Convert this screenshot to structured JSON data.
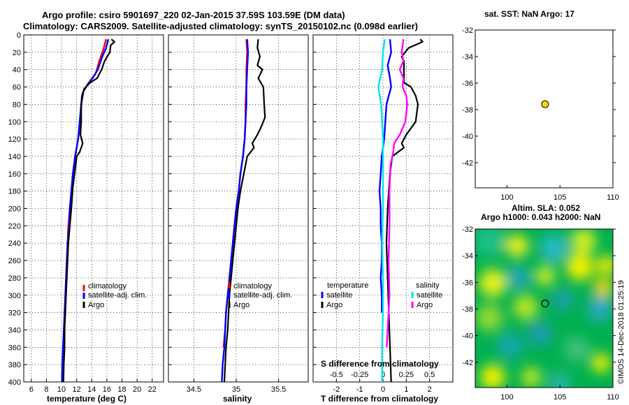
{
  "title_line1": "Argo profile: csiro 5901697_220 02-Jan-2015 37.59S 103.59E (DM data)",
  "title_line2": "Climatology: CARS2009. Satellite-adjusted climatology: synTS_20150102.nc (0.098d earlier)",
  "map1_title": "sat. SST: NaN Argo: 17",
  "map2_title1": "Altim. SLA: 0.052",
  "map2_title2": "Argo h1000: 0.043 h2000: NaN",
  "watermark": "©IMOS 14-Dec-2018 01:25:19",
  "colors": {
    "climatology": "#ff0000",
    "satellite": "#0000ff",
    "argo": "#000000",
    "sal_sat": "#00e5ee",
    "sal_argo": "#ff00ff"
  },
  "chart_data": [
    {
      "type": "line",
      "title": "",
      "xlabel": "temperature (deg C)",
      "ylabel": "",
      "xlim": [
        5,
        23.5
      ],
      "ylim": [
        400,
        0
      ],
      "xticks": [
        6,
        8,
        10,
        12,
        14,
        16,
        18,
        20,
        22
      ],
      "yticks": [
        0,
        20,
        40,
        60,
        80,
        100,
        120,
        140,
        160,
        180,
        200,
        220,
        240,
        260,
        280,
        300,
        320,
        340,
        360,
        380,
        400
      ],
      "grid": true,
      "legend_position": "bottom-right",
      "legend": [
        "climatology",
        "satellite-adj. clim.",
        "Argo"
      ],
      "series": [
        {
          "name": "climatology",
          "color": "red",
          "points": [
            [
              15.9,
              5
            ],
            [
              15.6,
              15
            ],
            [
              15.0,
              30
            ],
            [
              14.5,
              45
            ],
            [
              13.6,
              55
            ],
            [
              12.9,
              65
            ],
            [
              12.6,
              80
            ],
            [
              12.5,
              100
            ],
            [
              12.2,
              120
            ],
            [
              11.8,
              140
            ],
            [
              11.5,
              160
            ],
            [
              11.3,
              180
            ],
            [
              11.1,
              200
            ],
            [
              10.9,
              220
            ],
            [
              10.8,
              240
            ],
            [
              10.7,
              260
            ],
            [
              10.6,
              280
            ],
            [
              10.5,
              300
            ],
            [
              10.4,
              320
            ]
          ]
        },
        {
          "name": "satellite-adj. clim.",
          "color": "blue",
          "points": [
            [
              16.2,
              5
            ],
            [
              15.9,
              15
            ],
            [
              15.4,
              25
            ],
            [
              14.8,
              40
            ],
            [
              14.1,
              50
            ],
            [
              13.4,
              58
            ],
            [
              12.9,
              65
            ],
            [
              12.6,
              80
            ],
            [
              12.4,
              100
            ],
            [
              12.2,
              120
            ],
            [
              11.8,
              140
            ],
            [
              11.5,
              160
            ],
            [
              11.3,
              180
            ],
            [
              11.1,
              200
            ],
            [
              11.0,
              220
            ],
            [
              10.8,
              240
            ],
            [
              10.7,
              260
            ],
            [
              10.6,
              280
            ],
            [
              10.5,
              300
            ],
            [
              10.4,
              320
            ],
            [
              10.3,
              340
            ],
            [
              10.2,
              360
            ],
            [
              10.1,
              380
            ],
            [
              10.05,
              400
            ]
          ]
        },
        {
          "name": "Argo",
          "color": "black",
          "points": [
            [
              16.6,
              5
            ],
            [
              17.0,
              8
            ],
            [
              16.5,
              12
            ],
            [
              16.4,
              20
            ],
            [
              15.7,
              30
            ],
            [
              15.3,
              40
            ],
            [
              14.7,
              50
            ],
            [
              13.8,
              55
            ],
            [
              13.0,
              62
            ],
            [
              12.7,
              70
            ],
            [
              12.6,
              80
            ],
            [
              12.6,
              100
            ],
            [
              12.5,
              115
            ],
            [
              12.8,
              125
            ],
            [
              12.4,
              135
            ],
            [
              12.0,
              140
            ],
            [
              11.8,
              155
            ],
            [
              11.5,
              175
            ],
            [
              11.3,
              200
            ],
            [
              11.1,
              220
            ],
            [
              10.9,
              240
            ],
            [
              10.8,
              260
            ],
            [
              10.7,
              280
            ],
            [
              10.6,
              300
            ],
            [
              10.5,
              320
            ],
            [
              10.4,
              340
            ],
            [
              10.4,
              360
            ],
            [
              10.3,
              380
            ],
            [
              10.25,
              400
            ]
          ]
        }
      ]
    },
    {
      "type": "line",
      "title": "",
      "xlabel": "salinity",
      "ylabel": "",
      "xlim": [
        34.2,
        35.85
      ],
      "ylim": [
        400,
        0
      ],
      "xticks": [
        34.5,
        35,
        35.5
      ],
      "xticklabels": [
        "34.5",
        "35",
        "35.5"
      ],
      "grid": true,
      "legend_position": "bottom-right",
      "legend": [
        "climatology",
        "satellite-adj. clim.",
        "Argo"
      ],
      "series": [
        {
          "name": "climatology",
          "color": "red",
          "points": [
            [
              35.12,
              5
            ],
            [
              35.13,
              20
            ],
            [
              35.12,
              40
            ],
            [
              35.12,
              60
            ],
            [
              35.11,
              80
            ],
            [
              35.11,
              100
            ],
            [
              35.1,
              120
            ],
            [
              35.08,
              140
            ],
            [
              35.05,
              160
            ],
            [
              35.03,
              180
            ],
            [
              35.0,
              200
            ],
            [
              34.98,
              220
            ],
            [
              34.96,
              240
            ],
            [
              34.94,
              260
            ],
            [
              34.92,
              280
            ],
            [
              34.9,
              300
            ],
            [
              34.88,
              320
            ],
            [
              34.87,
              340
            ],
            [
              34.85,
              360
            ]
          ]
        },
        {
          "name": "satellite-adj. clim.",
          "color": "blue",
          "points": [
            [
              35.13,
              5
            ],
            [
              35.14,
              20
            ],
            [
              35.13,
              40
            ],
            [
              35.12,
              60
            ],
            [
              35.12,
              80
            ],
            [
              35.11,
              100
            ],
            [
              35.1,
              120
            ],
            [
              35.08,
              140
            ],
            [
              35.05,
              160
            ],
            [
              35.03,
              180
            ],
            [
              35.0,
              200
            ],
            [
              34.98,
              220
            ],
            [
              34.96,
              240
            ],
            [
              34.94,
              260
            ],
            [
              34.92,
              280
            ],
            [
              34.9,
              300
            ],
            [
              34.88,
              320
            ],
            [
              34.87,
              340
            ],
            [
              34.86,
              360
            ],
            [
              34.84,
              380
            ],
            [
              34.83,
              400
            ]
          ]
        },
        {
          "name": "Argo",
          "color": "black",
          "points": [
            [
              35.26,
              5
            ],
            [
              35.25,
              15
            ],
            [
              35.28,
              25
            ],
            [
              35.25,
              35
            ],
            [
              35.31,
              40
            ],
            [
              35.26,
              50
            ],
            [
              35.32,
              60
            ],
            [
              35.33,
              80
            ],
            [
              35.34,
              95
            ],
            [
              35.3,
              105
            ],
            [
              35.25,
              115
            ],
            [
              35.19,
              125
            ],
            [
              35.21,
              130
            ],
            [
              35.13,
              140
            ],
            [
              35.09,
              160
            ],
            [
              35.05,
              180
            ],
            [
              35.02,
              200
            ],
            [
              35.0,
              220
            ],
            [
              34.98,
              240
            ],
            [
              34.96,
              260
            ],
            [
              34.94,
              280
            ],
            [
              34.92,
              300
            ],
            [
              34.91,
              320
            ],
            [
              34.9,
              340
            ],
            [
              34.88,
              360
            ],
            [
              34.87,
              380
            ],
            [
              34.86,
              400
            ]
          ]
        }
      ]
    },
    {
      "type": "line",
      "title": "",
      "xlabel": "T difference from climatology",
      "x2label": "S difference from climatology",
      "ylabel": "",
      "xlim": [
        -3,
        3
      ],
      "ylim": [
        400,
        0
      ],
      "xticks": [
        -2,
        -1,
        0,
        1,
        2
      ],
      "xticklabels": [
        "-2",
        "-1",
        "0",
        "1",
        "2"
      ],
      "x2ticks": [
        -0.5,
        -0.25,
        0,
        0.25,
        0.5
      ],
      "x2ticklabels": [
        "-0.5",
        "-0.25",
        "0",
        "0.25",
        "0.5"
      ],
      "grid": true,
      "legend_position": "bottom",
      "legend_temperature_title": "temperature",
      "legend_salinity_title": "salinity",
      "legend": [
        "satellite",
        "Argo",
        "satellite",
        "Argo"
      ],
      "series": [
        {
          "name": "temperature satellite",
          "color": "blue",
          "points": [
            [
              0.3,
              5
            ],
            [
              0.35,
              20
            ],
            [
              0.2,
              35
            ],
            [
              0.3,
              50
            ],
            [
              0.35,
              60
            ],
            [
              0.15,
              80
            ],
            [
              0.1,
              100
            ],
            [
              0.05,
              120
            ],
            [
              -0.05,
              140
            ],
            [
              -0.1,
              160
            ],
            [
              -0.15,
              180
            ],
            [
              -0.1,
              200
            ],
            [
              -0.1,
              220
            ],
            [
              -0.05,
              240
            ],
            [
              -0.05,
              260
            ],
            [
              -0.1,
              280
            ],
            [
              -0.05,
              300
            ],
            [
              -0.05,
              320
            ]
          ]
        },
        {
          "name": "temperature Argo",
          "color": "black",
          "points": [
            [
              1.6,
              5
            ],
            [
              1.7,
              8
            ],
            [
              1.1,
              15
            ],
            [
              0.8,
              25
            ],
            [
              0.9,
              30
            ],
            [
              0.9,
              40
            ],
            [
              0.9,
              55
            ],
            [
              1.2,
              60
            ],
            [
              1.4,
              70
            ],
            [
              1.5,
              80
            ],
            [
              1.4,
              100
            ],
            [
              1.0,
              115
            ],
            [
              0.8,
              125
            ],
            [
              0.9,
              130
            ],
            [
              0.4,
              140
            ],
            [
              0.3,
              160
            ],
            [
              0.25,
              180
            ],
            [
              0.2,
              200
            ],
            [
              0.15,
              240
            ],
            [
              0.2,
              280
            ],
            [
              0.25,
              320
            ],
            [
              0.3,
              360
            ],
            [
              0.35,
              400
            ]
          ]
        },
        {
          "name": "salinity satellite",
          "color": "cyan",
          "points": [
            [
              0.02,
              5
            ],
            [
              0.0,
              20
            ],
            [
              -0.01,
              40
            ],
            [
              -0.05,
              60
            ],
            [
              -0.02,
              80
            ],
            [
              -0.01,
              100
            ],
            [
              0.0,
              120
            ],
            [
              0.0,
              160
            ],
            [
              0.0,
              200
            ],
            [
              -0.01,
              240
            ],
            [
              0.0,
              280
            ],
            [
              0.0,
              320
            ],
            [
              -0.01,
              360
            ],
            [
              -0.01,
              400
            ]
          ]
        },
        {
          "name": "salinity Argo",
          "color": "magenta",
          "points": [
            [
              0.22,
              5
            ],
            [
              0.2,
              20
            ],
            [
              0.22,
              30
            ],
            [
              0.18,
              40
            ],
            [
              0.22,
              50
            ],
            [
              0.21,
              60
            ],
            [
              0.25,
              70
            ],
            [
              0.26,
              80
            ],
            [
              0.24,
              100
            ],
            [
              0.18,
              115
            ],
            [
              0.12,
              125
            ],
            [
              0.11,
              135
            ],
            [
              0.08,
              150
            ],
            [
              0.07,
              180
            ],
            [
              0.07,
              220
            ],
            [
              0.06,
              260
            ],
            [
              0.07,
              300
            ],
            [
              0.05,
              340
            ],
            [
              0.04,
              360
            ]
          ]
        }
      ]
    },
    {
      "type": "scatter",
      "title": "sat. SST: NaN Argo: 17",
      "xlim": [
        97,
        110
      ],
      "ylim": [
        -43.9,
        -32
      ],
      "xticks": [
        100,
        105,
        110
      ],
      "yticks": [
        -32,
        -34,
        -36,
        -38,
        -40,
        -42
      ],
      "grid": false,
      "points": [
        [
          103.59,
          -37.59
        ]
      ]
    },
    {
      "type": "heatmap",
      "title": "Altim. SLA: 0.052 / Argo h1000: 0.043 h2000: NaN",
      "xlim": [
        97,
        110
      ],
      "ylim": [
        -43.9,
        -32
      ],
      "xticks": [
        100,
        105,
        110
      ],
      "yticks": [
        -32,
        -34,
        -36,
        -38,
        -40,
        -42
      ],
      "grid": false,
      "points": [
        [
          103.59,
          -37.59
        ]
      ]
    }
  ]
}
